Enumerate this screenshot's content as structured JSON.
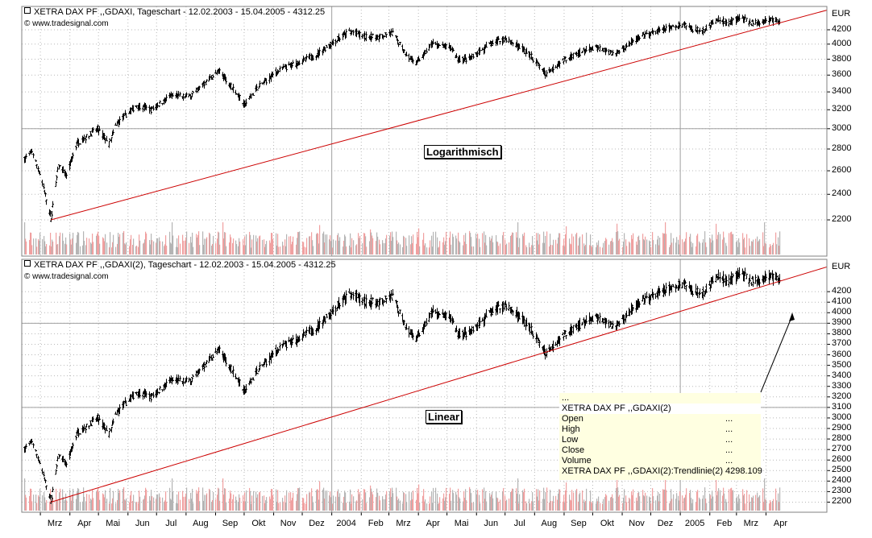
{
  "panels": [
    {
      "title": "XETRA DAX PF ,,GDAXI, Tageschart - 12.02.2003 - 15.04.2005 - 4312.25",
      "source": "© www.tradesignal.com",
      "currency": "EUR",
      "label": "Logarithmisch",
      "yticks": [
        "4200",
        "4000",
        "3800",
        "3600",
        "3400",
        "3200",
        "3000",
        "2800",
        "2600",
        "2400",
        "2200"
      ]
    },
    {
      "title": "XETRA DAX PF ,,GDAXI(2), Tageschart - 12.02.2003 - 15.04.2005 - 4312.25",
      "source": "© www.tradesignal.com",
      "currency": "EUR",
      "label": "Linear",
      "yticks": [
        "4200",
        "4100",
        "4000",
        "3900",
        "3800",
        "3700",
        "3600",
        "3500",
        "3400",
        "3300",
        "3200",
        "3100",
        "3000",
        "2900",
        "2800",
        "2700",
        "2600",
        "2500",
        "2400",
        "2300",
        "2200"
      ]
    }
  ],
  "xaxis": {
    "labels": [
      "Mrz",
      "Apr",
      "Mai",
      "Jun",
      "Jul",
      "Aug",
      "Sep",
      "Okt",
      "Nov",
      "Dez",
      "2004",
      "Feb",
      "Mrz",
      "Apr",
      "Mai",
      "Jun",
      "Jul",
      "Aug",
      "Sep",
      "Okt",
      "Nov",
      "Dez",
      "2005",
      "Feb",
      "Mrz",
      "Apr"
    ]
  },
  "infobox": {
    "rows": [
      {
        "label": "...",
        "value": ""
      },
      {
        "label": "XETRA DAX PF ,,GDAXI(2)",
        "value": ""
      },
      {
        "label": "Open",
        "value": "..."
      },
      {
        "label": "High",
        "value": "..."
      },
      {
        "label": "Low",
        "value": "..."
      },
      {
        "label": "Close",
        "value": "..."
      },
      {
        "label": "Volume",
        "value": "..."
      },
      {
        "label": "XETRA DAX PF ,,GDAXI(2):Trendlinie(2)",
        "value": "4298.109"
      }
    ]
  },
  "colors": {
    "bars": "#000000",
    "trendline": "#cc0000",
    "volume_up": "#f0a0a0",
    "volume_down": "#b4b4b4",
    "grid": "#b8b8b8",
    "panel_bg": "#ffffff",
    "infobox_bg": "#ffffe1"
  },
  "chart_data": [
    {
      "type": "ohlc",
      "title": "XETRA DAX PF ,,GDAXI, Tageschart - 12.02.2003 - 15.04.2005 - 4312.25",
      "scale": "log",
      "ylim": [
        2100,
        4400
      ],
      "x_range": [
        "2003-02-12",
        "2005-04-15"
      ],
      "price_path": [
        [
          "2003-02-12",
          2700
        ],
        [
          "2003-02-20",
          2780
        ],
        [
          "2003-03-01",
          2550
        ],
        [
          "2003-03-12",
          2200
        ],
        [
          "2003-03-20",
          2650
        ],
        [
          "2003-03-28",
          2550
        ],
        [
          "2003-04-08",
          2850
        ],
        [
          "2003-04-30",
          3000
        ],
        [
          "2003-05-12",
          2850
        ],
        [
          "2003-05-20",
          3050
        ],
        [
          "2003-06-10",
          3250
        ],
        [
          "2003-06-25",
          3200
        ],
        [
          "2003-07-15",
          3350
        ],
        [
          "2003-08-05",
          3350
        ],
        [
          "2003-08-25",
          3550
        ],
        [
          "2003-09-05",
          3650
        ],
        [
          "2003-09-22",
          3400
        ],
        [
          "2003-10-01",
          3250
        ],
        [
          "2003-10-15",
          3450
        ],
        [
          "2003-11-05",
          3650
        ],
        [
          "2003-11-25",
          3750
        ],
        [
          "2003-12-15",
          3850
        ],
        [
          "2004-01-05",
          4050
        ],
        [
          "2004-01-20",
          4180
        ],
        [
          "2004-02-05",
          4100
        ],
        [
          "2004-02-20",
          4100
        ],
        [
          "2004-03-05",
          4150
        ],
        [
          "2004-03-20",
          3850
        ],
        [
          "2004-03-30",
          3750
        ],
        [
          "2004-04-15",
          4000
        ],
        [
          "2004-05-05",
          3950
        ],
        [
          "2004-05-12",
          3800
        ],
        [
          "2004-05-25",
          3800
        ],
        [
          "2004-06-15",
          4000
        ],
        [
          "2004-07-01",
          4080
        ],
        [
          "2004-07-25",
          3880
        ],
        [
          "2004-08-12",
          3620
        ],
        [
          "2004-09-01",
          3800
        ],
        [
          "2004-09-20",
          3900
        ],
        [
          "2004-10-05",
          3950
        ],
        [
          "2004-10-25",
          3870
        ],
        [
          "2004-11-10",
          4030
        ],
        [
          "2004-12-01",
          4150
        ],
        [
          "2004-12-20",
          4220
        ],
        [
          "2005-01-05",
          4280
        ],
        [
          "2005-01-15",
          4200
        ],
        [
          "2005-01-25",
          4200
        ],
        [
          "2005-02-10",
          4350
        ],
        [
          "2005-02-20",
          4300
        ],
        [
          "2005-03-05",
          4380
        ],
        [
          "2005-03-15",
          4300
        ],
        [
          "2005-03-25",
          4300
        ],
        [
          "2005-04-05",
          4350
        ],
        [
          "2005-04-15",
          4312.25
        ]
      ],
      "trendline": [
        [
          "2003-03-12",
          2200
        ],
        [
          "2005-04-15",
          4298.109
        ]
      ],
      "annotation": "Logarithmisch"
    },
    {
      "type": "ohlc",
      "title": "XETRA DAX PF ,,GDAXI(2), Tageschart - 12.02.2003 - 15.04.2005 - 4312.25",
      "scale": "linear",
      "ylim": [
        2150,
        4400
      ],
      "x_range": [
        "2003-02-12",
        "2005-04-15"
      ],
      "price_path": "same as panel 1",
      "trendline": [
        [
          "2003-03-12",
          2200
        ],
        [
          "2005-04-15",
          4298.109
        ]
      ],
      "annotation": "Linear"
    }
  ]
}
